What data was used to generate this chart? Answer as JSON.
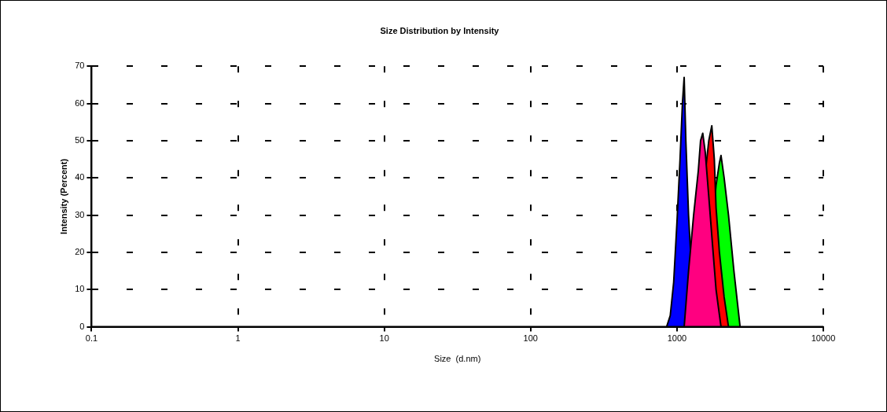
{
  "chart_data": {
    "type": "area",
    "title": "Size Distribution by Intensity",
    "xlabel": "Size  (d.nm)",
    "ylabel": "Intensity (Percent)",
    "log": "x",
    "xlim": [
      0.1,
      10000
    ],
    "xticks": [
      0.1,
      1,
      10,
      100,
      1000,
      10000
    ],
    "ylim": [
      0,
      70
    ],
    "yticks": [
      0,
      10,
      20,
      30,
      40,
      50,
      60,
      70
    ],
    "grid": true,
    "legend": false,
    "series": [
      {
        "color": "#ff0080",
        "x": [
          1120,
          1200,
          1300,
          1400,
          1450,
          1500,
          1560,
          1650,
          1750,
          1850,
          2000
        ],
        "values": [
          0,
          15,
          30,
          42,
          50,
          52,
          47,
          35,
          22,
          10,
          0
        ]
      },
      {
        "color": "#0000ff",
        "x": [
          850,
          900,
          950,
          1000,
          1050,
          1090,
          1120,
          1150,
          1200,
          1260,
          1320
        ],
        "values": [
          0,
          3,
          12,
          28,
          45,
          60,
          67,
          50,
          30,
          null,
          0
        ]
      },
      {
        "color": "#ff0000",
        "x": [
          1200,
          1400,
          1550,
          1650,
          1730,
          1800,
          1850,
          1950,
          2100,
          2250
        ],
        "values": [
          0,
          null,
          40,
          50,
          54,
          45,
          32,
          20,
          8,
          0
        ]
      },
      {
        "color": "#00ff00",
        "x": [
          1500,
          1700,
          1850,
          1950,
          2000,
          2100,
          2250,
          2450,
          2700
        ],
        "values": [
          0,
          null,
          38,
          44,
          46,
          40,
          30,
          15,
          0
        ]
      }
    ]
  }
}
